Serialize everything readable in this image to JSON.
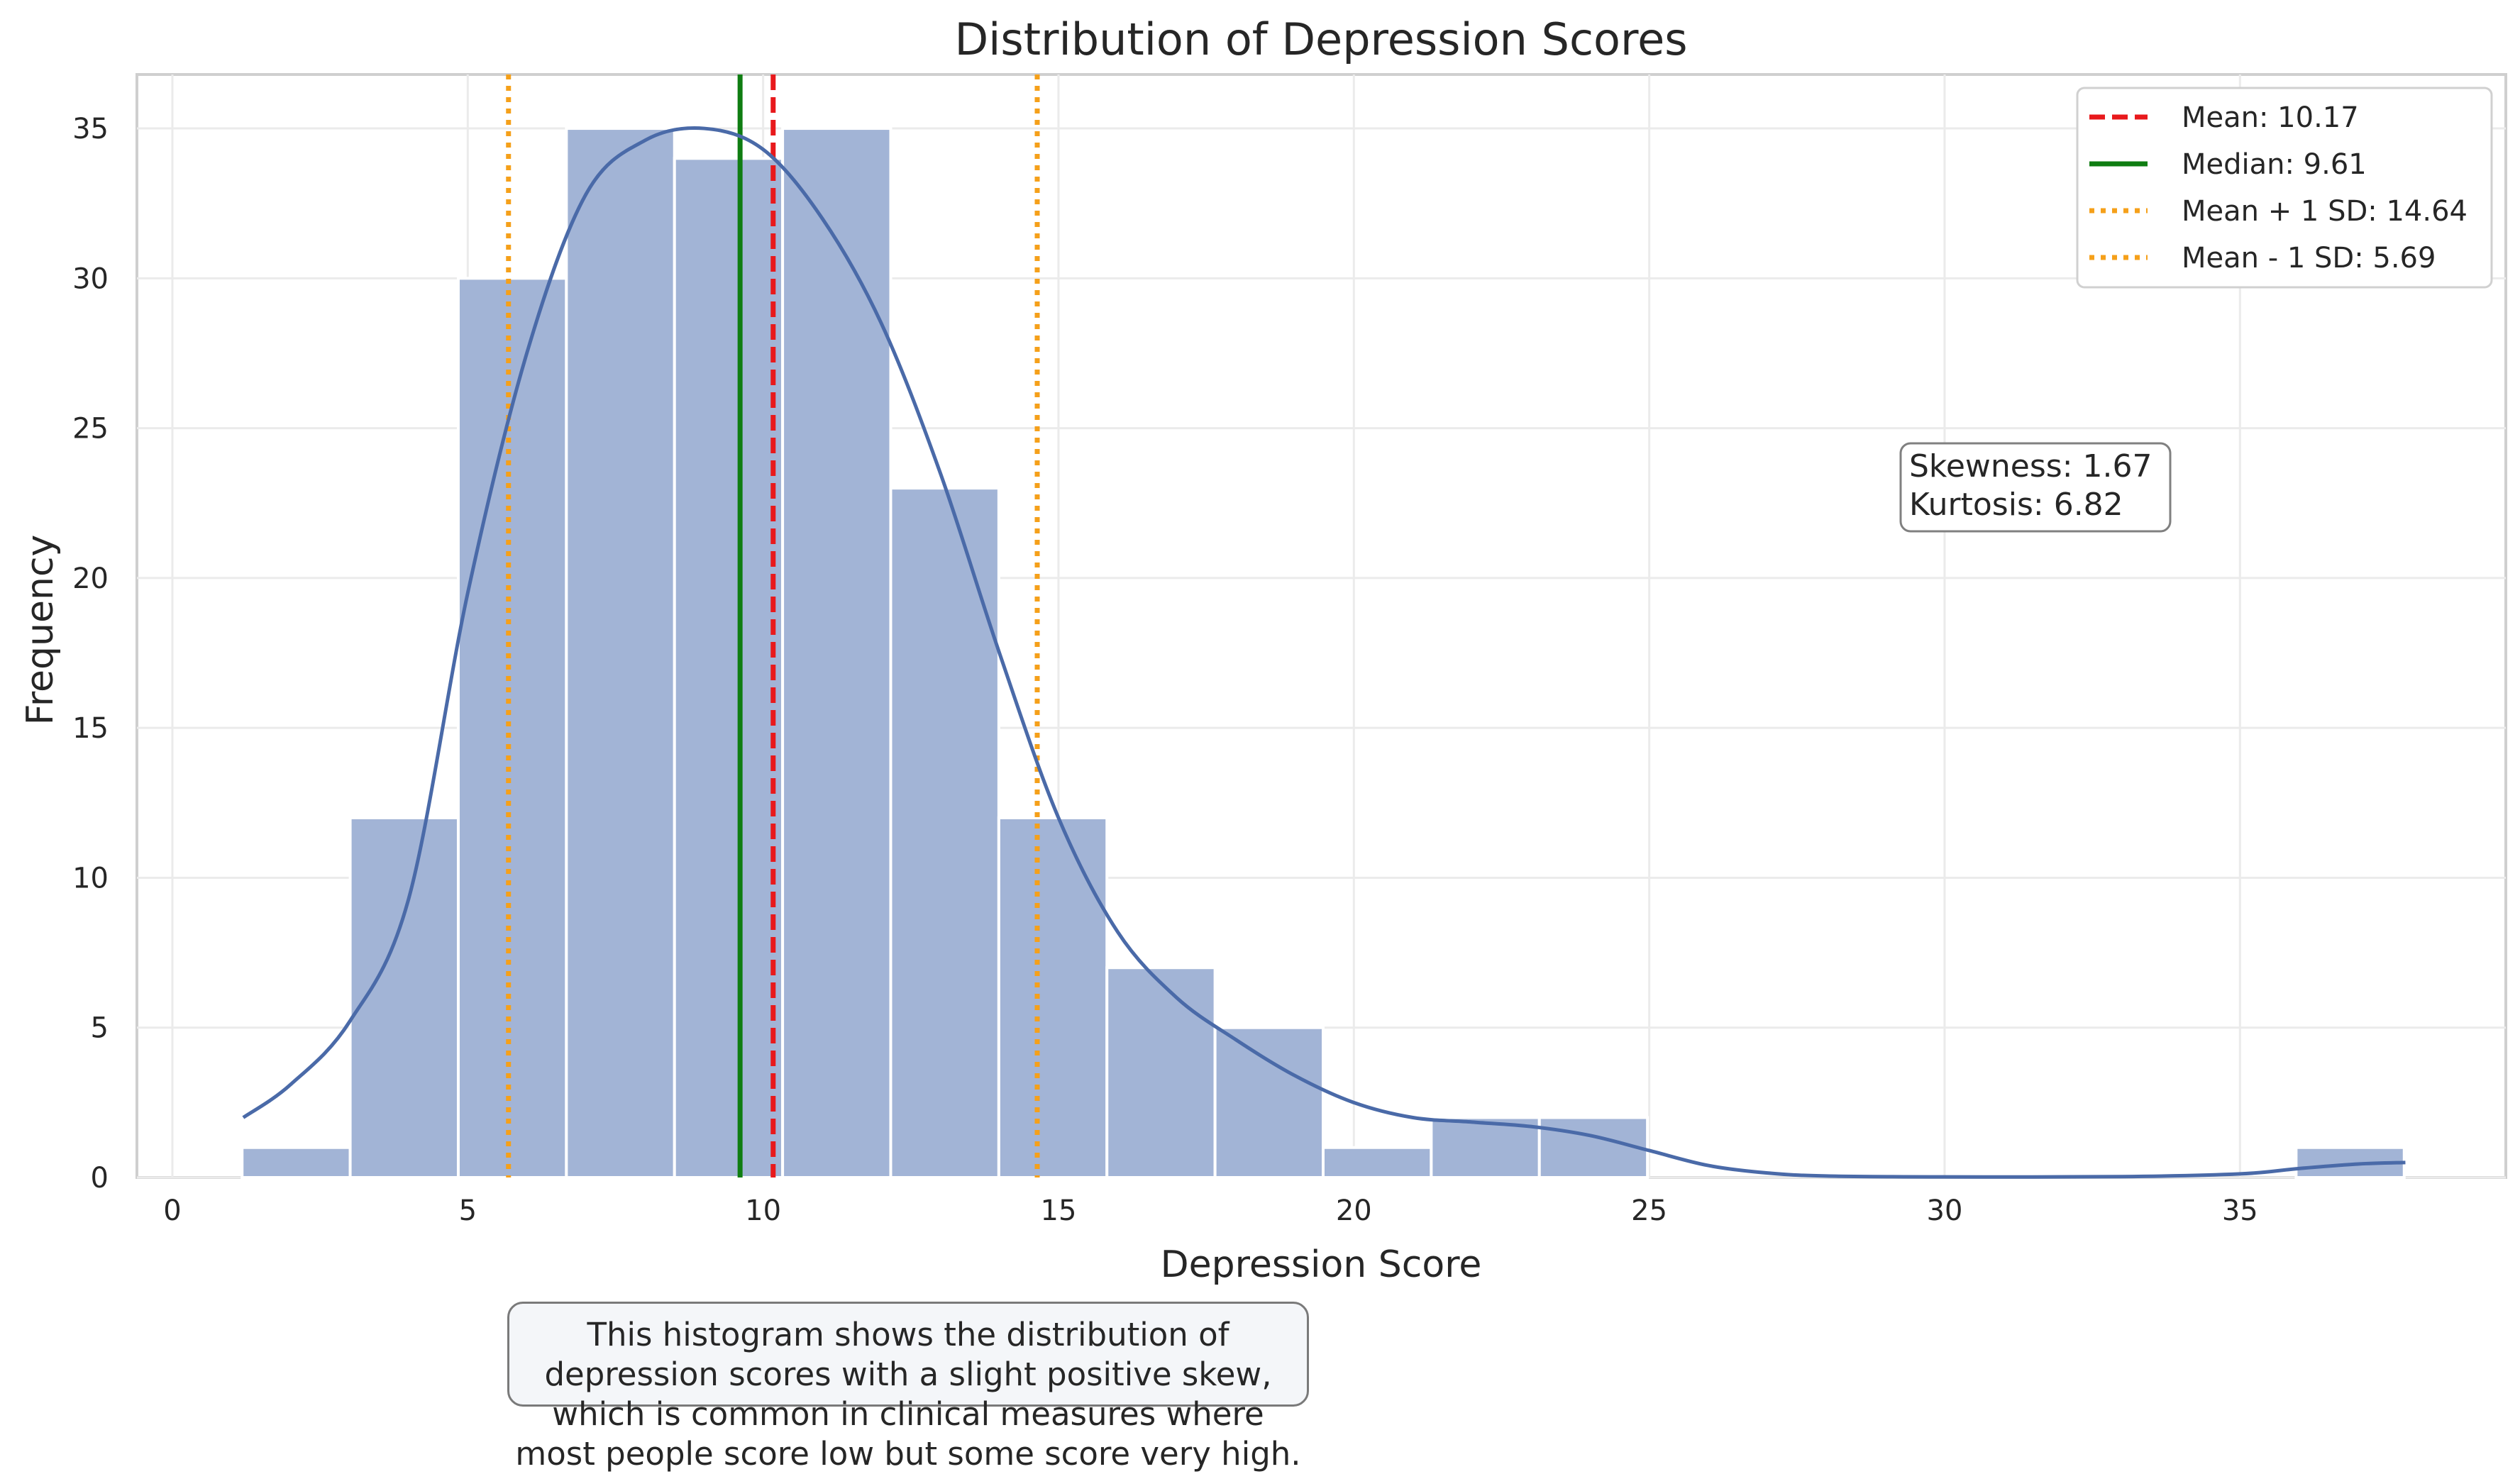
{
  "chart_data": {
    "type": "bar",
    "title": "Distribution of Depression Scores",
    "xlabel": "Depression Score",
    "ylabel": "Frequency",
    "xlim": [
      -0.6,
      39.5
    ],
    "ylim": [
      0,
      36.8
    ],
    "xticks": [
      0,
      5,
      10,
      15,
      20,
      25,
      30,
      35
    ],
    "yticks": [
      0,
      5,
      10,
      15,
      20,
      25,
      30,
      35
    ],
    "grid": true,
    "bins": [
      {
        "x0": 1.18,
        "x1": 3.01,
        "count": 1
      },
      {
        "x0": 3.01,
        "x1": 4.84,
        "count": 12
      },
      {
        "x0": 4.84,
        "x1": 6.67,
        "count": 30
      },
      {
        "x0": 6.67,
        "x1": 8.5,
        "count": 35
      },
      {
        "x0": 8.5,
        "x1": 10.33,
        "count": 34
      },
      {
        "x0": 10.33,
        "x1": 12.16,
        "count": 35
      },
      {
        "x0": 12.16,
        "x1": 13.99,
        "count": 23
      },
      {
        "x0": 13.99,
        "x1": 15.82,
        "count": 12
      },
      {
        "x0": 15.82,
        "x1": 17.65,
        "count": 7
      },
      {
        "x0": 17.65,
        "x1": 19.48,
        "count": 5
      },
      {
        "x0": 19.48,
        "x1": 21.31,
        "count": 1
      },
      {
        "x0": 21.31,
        "x1": 23.14,
        "count": 2
      },
      {
        "x0": 23.14,
        "x1": 24.97,
        "count": 2
      },
      {
        "x0": 24.97,
        "x1": 26.8,
        "count": 0
      },
      {
        "x0": 26.8,
        "x1": 28.63,
        "count": 0
      },
      {
        "x0": 28.63,
        "x1": 30.46,
        "count": 0
      },
      {
        "x0": 30.46,
        "x1": 32.29,
        "count": 0
      },
      {
        "x0": 32.29,
        "x1": 34.12,
        "count": 0
      },
      {
        "x0": 34.12,
        "x1": 35.95,
        "count": 0
      },
      {
        "x0": 35.95,
        "x1": 37.78,
        "count": 1
      }
    ],
    "kde": [
      [
        1.2,
        2.0
      ],
      [
        2.0,
        3.1
      ],
      [
        3.0,
        5.2
      ],
      [
        4.0,
        9.3
      ],
      [
        5.0,
        19.5
      ],
      [
        6.0,
        27.5
      ],
      [
        7.0,
        32.8
      ],
      [
        8.0,
        34.6
      ],
      [
        9.0,
        35.0
      ],
      [
        10.0,
        34.3
      ],
      [
        11.0,
        32.0
      ],
      [
        12.0,
        28.5
      ],
      [
        13.0,
        23.5
      ],
      [
        14.0,
        17.5
      ],
      [
        15.0,
        12.0
      ],
      [
        16.0,
        8.2
      ],
      [
        17.0,
        6.0
      ],
      [
        18.0,
        4.6
      ],
      [
        19.0,
        3.4
      ],
      [
        20.0,
        2.5
      ],
      [
        21.0,
        2.0
      ],
      [
        22.0,
        1.85
      ],
      [
        23.0,
        1.7
      ],
      [
        24.0,
        1.4
      ],
      [
        25.0,
        0.9
      ],
      [
        26.0,
        0.4
      ],
      [
        27.0,
        0.15
      ],
      [
        28.0,
        0.05
      ],
      [
        30.0,
        0.02
      ],
      [
        33.0,
        0.03
      ],
      [
        35.0,
        0.12
      ],
      [
        36.0,
        0.3
      ],
      [
        37.0,
        0.45
      ],
      [
        37.8,
        0.5
      ]
    ],
    "reference_lines": [
      {
        "label": "Mean: 10.17",
        "x": 10.17,
        "color": "#e8191c",
        "style": "dashed"
      },
      {
        "label": "Median: 9.61",
        "x": 9.61,
        "color": "#0f7d12",
        "style": "solid"
      },
      {
        "label": "Mean + 1 SD: 14.64",
        "x": 14.64,
        "color": "#f5a01a",
        "style": "dotted"
      },
      {
        "label": "Mean - 1 SD: 5.69",
        "x": 5.69,
        "color": "#f5a01a",
        "style": "dotted"
      }
    ],
    "legend_position": "top-right",
    "stats": {
      "skewness": "Skewness: 1.67",
      "kurtosis": "Kurtosis: 6.82"
    },
    "bar_color": "#a2b4d6",
    "kde_color": "#4a6aa8",
    "caption_lines": [
      "This histogram shows the distribution of depression scores with a slight positive skew,",
      "which is common in clinical measures where most people score low but some score very high."
    ]
  }
}
